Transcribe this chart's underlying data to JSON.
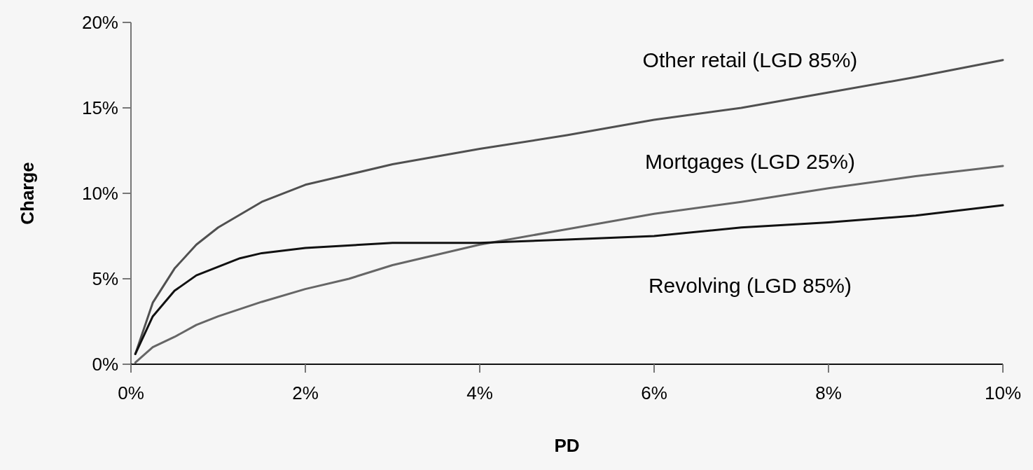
{
  "chart_data": {
    "type": "line",
    "xlabel": "PD",
    "ylabel": "Charge",
    "xlim": [
      0,
      10
    ],
    "ylim": [
      0,
      20
    ],
    "xticks": [
      {
        "value": 0,
        "label": "0%"
      },
      {
        "value": 2,
        "label": "2%"
      },
      {
        "value": 4,
        "label": "4%"
      },
      {
        "value": 6,
        "label": "6%"
      },
      {
        "value": 8,
        "label": "8%"
      },
      {
        "value": 10,
        "label": "10%"
      }
    ],
    "yticks": [
      {
        "value": 0,
        "label": "0%"
      },
      {
        "value": 5,
        "label": "5%"
      },
      {
        "value": 10,
        "label": "10%"
      },
      {
        "value": 15,
        "label": "15%"
      },
      {
        "value": 20,
        "label": "20%"
      }
    ],
    "grid": false,
    "marker": "none",
    "line_style": "solid",
    "series": [
      {
        "name": "Other retail (LGD 85%)",
        "color": "#505050",
        "x": [
          0.05,
          0.25,
          0.5,
          0.75,
          1,
          1.5,
          2,
          3,
          4,
          5,
          6,
          7,
          8,
          9,
          10
        ],
        "values": [
          0.6,
          3.6,
          5.6,
          7.0,
          8.0,
          9.5,
          10.5,
          11.7,
          12.6,
          13.4,
          14.3,
          15.0,
          15.9,
          16.8,
          17.8
        ]
      },
      {
        "name": "Mortgages (LGD 25%)",
        "color": "#666666",
        "x": [
          0.05,
          0.25,
          0.5,
          0.75,
          1,
          1.5,
          2,
          2.5,
          3,
          4,
          5,
          6,
          7,
          8,
          9,
          10
        ],
        "values": [
          0.1,
          1.0,
          1.6,
          2.3,
          2.8,
          3.65,
          4.4,
          5.0,
          5.8,
          7.0,
          7.9,
          8.8,
          9.5,
          10.3,
          11.0,
          11.6
        ]
      },
      {
        "name": "Revolving (LGD 85%)",
        "color": "#111111",
        "x": [
          0.05,
          0.25,
          0.5,
          0.75,
          1,
          1.25,
          1.5,
          2,
          3,
          4,
          5,
          6,
          7,
          8,
          9,
          10
        ],
        "values": [
          0.6,
          2.8,
          4.3,
          5.2,
          5.7,
          6.2,
          6.5,
          6.8,
          7.1,
          7.1,
          7.3,
          7.5,
          8.0,
          8.3,
          8.7,
          9.3
        ]
      }
    ]
  }
}
